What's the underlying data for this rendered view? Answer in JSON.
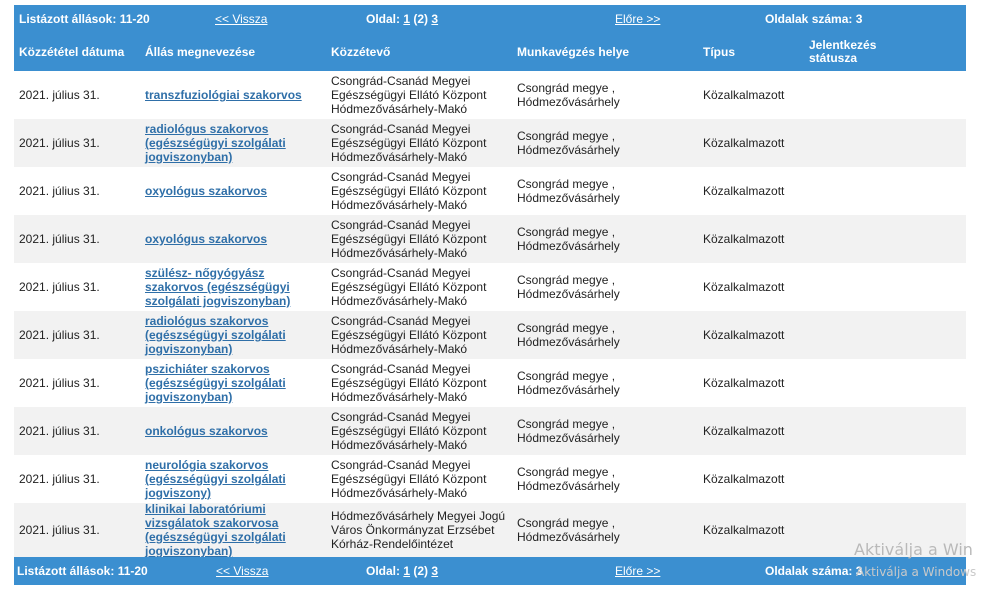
{
  "pager": {
    "listed_label": "Listázott állások: 11-20",
    "back_label": "<< Vissza",
    "page_prefix": "Oldal:",
    "page1": "1",
    "current": "(2)",
    "page3": "3",
    "next_label": "Előre >>",
    "total_label": "Oldalak száma: 3"
  },
  "columns": {
    "date": "Közzététel dátuma",
    "title": "Állás megnevezése",
    "publisher": "Közzétevő",
    "location": "Munkavégzés helye",
    "type": "Típus",
    "status_line1": "Jelentkezés",
    "status_line2": "státusza"
  },
  "rows": [
    {
      "date": "2021. július 31.",
      "title": [
        "transzfuziológiai szakorvos"
      ],
      "publisher": [
        "Csongrád-Csanád Megyei",
        "Egészségügyi Ellátó Központ",
        "Hódmezővásárhely-Makó"
      ],
      "location": [
        "Csongrád megye ,",
        "Hódmezővásárhely"
      ],
      "type": "Közalkalmazott"
    },
    {
      "date": "2021. július 31.",
      "title": [
        "radiológus szakorvos",
        "(egészségügyi szolgálati",
        "jogviszonyban)"
      ],
      "publisher": [
        "Csongrád-Csanád Megyei",
        "Egészségügyi Ellátó Központ",
        "Hódmezővásárhely-Makó"
      ],
      "location": [
        "Csongrád megye ,",
        "Hódmezővásárhely"
      ],
      "type": "Közalkalmazott"
    },
    {
      "date": "2021. július 31.",
      "title": [
        "oxyológus szakorvos"
      ],
      "publisher": [
        "Csongrád-Csanád Megyei",
        "Egészségügyi Ellátó Központ",
        "Hódmezővásárhely-Makó"
      ],
      "location": [
        "Csongrád megye ,",
        "Hódmezővásárhely"
      ],
      "type": "Közalkalmazott"
    },
    {
      "date": "2021. július 31.",
      "title": [
        "oxyológus szakorvos"
      ],
      "publisher": [
        "Csongrád-Csanád Megyei",
        "Egészségügyi Ellátó Központ",
        "Hódmezővásárhely-Makó"
      ],
      "location": [
        "Csongrád megye ,",
        "Hódmezővásárhely"
      ],
      "type": "Közalkalmazott"
    },
    {
      "date": "2021. július 31.",
      "title": [
        "szülész- nőgyógyász",
        "szakorvos (egészségügyi",
        "szolgálati jogviszonyban)"
      ],
      "publisher": [
        "Csongrád-Csanád Megyei",
        "Egészségügyi Ellátó Központ",
        "Hódmezővásárhely-Makó"
      ],
      "location": [
        "Csongrád megye ,",
        "Hódmezővásárhely"
      ],
      "type": "Közalkalmazott"
    },
    {
      "date": "2021. július 31.",
      "title": [
        "radiológus szakorvos",
        "(egészségügyi szolgálati",
        "jogviszonyban)"
      ],
      "publisher": [
        "Csongrád-Csanád Megyei",
        "Egészségügyi Ellátó Központ",
        "Hódmezővásárhely-Makó"
      ],
      "location": [
        "Csongrád megye ,",
        "Hódmezővásárhely"
      ],
      "type": "Közalkalmazott"
    },
    {
      "date": "2021. július 31.",
      "title": [
        "pszichiáter szakorvos",
        "(egészségügyi szolgálati",
        "jogviszonyban)"
      ],
      "publisher": [
        "Csongrád-Csanád Megyei",
        "Egészségügyi Ellátó Központ",
        "Hódmezővásárhely-Makó"
      ],
      "location": [
        "Csongrád megye ,",
        "Hódmezővásárhely"
      ],
      "type": "Közalkalmazott"
    },
    {
      "date": "2021. július 31.",
      "title": [
        "onkológus szakorvos"
      ],
      "publisher": [
        "Csongrád-Csanád Megyei",
        "Egészségügyi Ellátó Központ",
        "Hódmezővásárhely-Makó"
      ],
      "location": [
        "Csongrád megye ,",
        "Hódmezővásárhely"
      ],
      "type": "Közalkalmazott"
    },
    {
      "date": "2021. július 31.",
      "title": [
        "neurológia szakorvos",
        "(egészségügyi szolgálati",
        "jogviszony)"
      ],
      "publisher": [
        "Csongrád-Csanád Megyei",
        "Egészségügyi Ellátó Központ",
        "Hódmezővásárhely-Makó"
      ],
      "location": [
        "Csongrád megye ,",
        "Hódmezővásárhely"
      ],
      "type": "Közalkalmazott"
    },
    {
      "date": "2021. július 31.",
      "title": [
        "klinikai laboratóriumi",
        "vizsgálatok szakorvosa",
        "(egészségügyi szolgálati",
        "jogviszonyban)"
      ],
      "publisher": [
        "Hódmezővásárhely Megyei Jogú",
        "Város Önkormányzat Erzsébet",
        "Kórház-Rendelőintézet"
      ],
      "location": [
        "Csongrád megye ,",
        "Hódmezővásárhely"
      ],
      "type": "Közalkalmazott"
    }
  ],
  "watermark": {
    "line1": "Aktiválja a Win",
    "line2": "Aktiválja a Windows"
  }
}
